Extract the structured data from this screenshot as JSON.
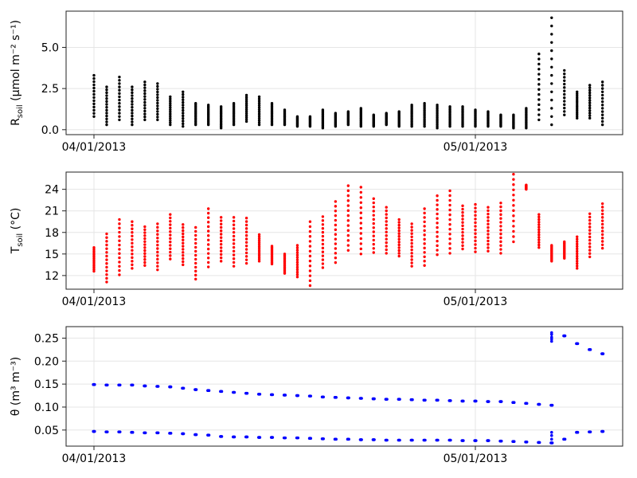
{
  "chart_data": [
    {
      "type": "scatter",
      "ylabel": "Rsoil (µmol m⁻² s⁻¹)",
      "ylabel_parts": {
        "main": "R",
        "sub": "soil",
        "unit": " (µmol m⁻² s⁻¹)"
      },
      "x_ticks": [
        "04/01/2013",
        "05/01/2013"
      ],
      "y_ticks": [
        0.0,
        2.5,
        5.0
      ],
      "y_tick_labels": [
        "0.0",
        "2.5",
        "5.0"
      ],
      "ylim": [
        -0.3,
        7.2
      ],
      "xlim_days": [
        -1.5,
        42.2
      ],
      "grid": true,
      "color": "#000000",
      "series": [
        {
          "x": [
            0,
            1,
            2,
            3,
            4,
            5,
            6,
            7,
            8,
            9,
            10,
            11,
            12,
            13,
            14,
            15,
            16,
            17,
            18,
            19,
            20,
            21,
            22,
            23,
            24,
            25,
            26,
            27,
            28,
            29,
            30,
            31,
            32,
            33,
            34,
            35,
            36,
            37,
            38,
            39,
            40
          ],
          "ymin": [
            0.8,
            0.3,
            0.6,
            0.3,
            0.6,
            0.6,
            0.3,
            0.2,
            0.3,
            0.3,
            0.1,
            0.3,
            0.5,
            0.3,
            0.3,
            0.3,
            0.2,
            0.2,
            0.1,
            0.2,
            0.3,
            0.2,
            0.2,
            0.3,
            0.2,
            0.2,
            0.2,
            0.1,
            0.2,
            0.2,
            0.2,
            0.2,
            0.2,
            0.1,
            0.1,
            0.6,
            0.3,
            0.9,
            0.7,
            0.7,
            0.3
          ],
          "ymax": [
            3.3,
            2.6,
            3.2,
            2.6,
            2.9,
            2.8,
            2.0,
            2.3,
            1.6,
            1.5,
            1.4,
            1.6,
            2.1,
            2.0,
            1.6,
            1.2,
            0.8,
            0.8,
            1.2,
            1.0,
            1.1,
            1.3,
            0.9,
            1.0,
            1.1,
            1.5,
            1.6,
            1.5,
            1.4,
            1.4,
            1.2,
            1.1,
            0.9,
            0.9,
            1.3,
            4.6,
            6.8,
            3.6,
            2.3,
            2.7,
            2.9
          ]
        }
      ]
    },
    {
      "type": "scatter",
      "ylabel": "Tsoil (°C)",
      "ylabel_parts": {
        "main": "T",
        "sub": "soil",
        "unit": " (°C)"
      },
      "x_ticks": [
        "04/01/2013",
        "05/01/2013"
      ],
      "y_ticks": [
        12,
        15,
        18,
        21,
        24
      ],
      "y_tick_labels": [
        "12",
        "15",
        "18",
        "21",
        "24"
      ],
      "ylim": [
        10.1,
        26.4
      ],
      "xlim_days": [
        -1.5,
        42.2
      ],
      "grid": true,
      "color": "#ff0000",
      "series": [
        {
          "x": [
            0,
            1,
            2,
            3,
            4,
            5,
            6,
            7,
            8,
            9,
            10,
            11,
            12,
            13,
            14,
            15,
            16,
            17,
            18,
            19,
            20,
            21,
            22,
            23,
            24,
            25,
            26,
            27,
            28,
            29,
            30,
            31,
            32,
            33,
            34,
            35,
            36,
            37,
            38,
            39,
            40
          ],
          "ymin": [
            12.6,
            11.1,
            12.1,
            13.0,
            13.4,
            12.8,
            14.3,
            13.5,
            11.5,
            13.2,
            14.0,
            13.3,
            13.7,
            14.0,
            13.6,
            12.3,
            11.8,
            10.6,
            13.1,
            13.8,
            15.5,
            15.0,
            15.2,
            15.1,
            14.7,
            13.3,
            13.4,
            14.9,
            15.1,
            15.7,
            15.3,
            15.4,
            15.1,
            16.7,
            24.0,
            15.9,
            14.0,
            14.4,
            13.0,
            14.6,
            15.8
          ],
          "ymax": [
            15.9,
            17.8,
            19.8,
            19.5,
            18.8,
            19.2,
            20.5,
            19.1,
            18.7,
            21.3,
            20.1,
            20.1,
            20.0,
            17.7,
            16.1,
            15.0,
            16.2,
            19.5,
            20.2,
            22.3,
            24.5,
            24.3,
            22.7,
            21.5,
            19.8,
            19.2,
            21.3,
            23.1,
            23.8,
            21.7,
            21.9,
            21.5,
            22.1,
            26.1,
            24.6,
            20.5,
            16.2,
            16.7,
            17.4,
            20.6,
            22.0
          ]
        }
      ]
    },
    {
      "type": "scatter",
      "ylabel": "θ (m³ m⁻³)",
      "ylabel_parts": {
        "main": "θ",
        "sub": "",
        "unit": " (m³ m⁻³)"
      },
      "x_ticks": [
        "04/01/2013",
        "05/01/2013"
      ],
      "y_ticks": [
        0.05,
        0.1,
        0.15,
        0.2,
        0.25
      ],
      "y_tick_labels": [
        "0.05",
        "0.10",
        "0.15",
        "0.20",
        "0.25"
      ],
      "ylim": [
        0.015,
        0.275
      ],
      "xlim_days": [
        -1.5,
        42.2
      ],
      "grid": true,
      "color": "#0000ff",
      "series": [
        {
          "name": "upper",
          "x": [
            0,
            1,
            2,
            3,
            4,
            5,
            6,
            7,
            8,
            9,
            10,
            11,
            12,
            13,
            14,
            15,
            16,
            17,
            18,
            19,
            20,
            21,
            22,
            23,
            24,
            25,
            26,
            27,
            28,
            29,
            30,
            31,
            32,
            33,
            34,
            35,
            36,
            37,
            38,
            39,
            40
          ],
          "y": [
            0.149,
            0.148,
            0.148,
            0.148,
            0.146,
            0.145,
            0.144,
            0.141,
            0.138,
            0.136,
            0.134,
            0.132,
            0.13,
            0.128,
            0.127,
            0.126,
            0.125,
            0.124,
            0.122,
            0.121,
            0.12,
            0.119,
            0.118,
            0.117,
            0.117,
            0.116,
            0.115,
            0.115,
            0.114,
            0.113,
            0.113,
            0.112,
            0.112,
            0.11,
            0.108,
            0.106,
            0.104,
            0.255,
            0.238,
            0.225,
            0.216
          ]
        },
        {
          "name": "lower",
          "x": [
            0,
            1,
            2,
            3,
            4,
            5,
            6,
            7,
            8,
            9,
            10,
            11,
            12,
            13,
            14,
            15,
            16,
            17,
            18,
            19,
            20,
            21,
            22,
            23,
            24,
            25,
            26,
            27,
            28,
            29,
            30,
            31,
            32,
            33,
            34,
            35,
            36,
            37,
            38,
            39,
            40
          ],
          "y": [
            0.047,
            0.046,
            0.046,
            0.045,
            0.044,
            0.044,
            0.043,
            0.042,
            0.04,
            0.039,
            0.036,
            0.035,
            0.035,
            0.034,
            0.034,
            0.033,
            0.033,
            0.032,
            0.031,
            0.03,
            0.03,
            0.029,
            0.029,
            0.028,
            0.028,
            0.028,
            0.028,
            0.028,
            0.028,
            0.027,
            0.027,
            0.027,
            0.026,
            0.025,
            0.024,
            0.023,
            0.022,
            0.03,
            0.045,
            0.046,
            0.047
          ]
        }
      ]
    }
  ]
}
